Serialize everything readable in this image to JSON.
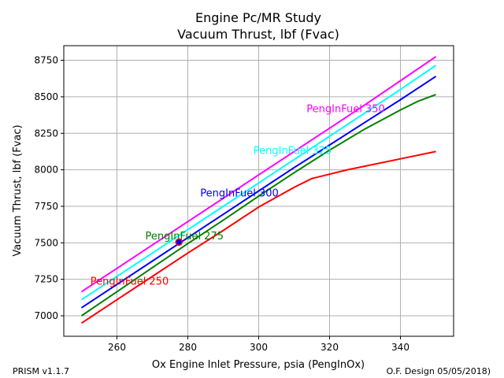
{
  "chart_data": {
    "type": "line",
    "title": "Engine Pc/MR Study",
    "subtitle": "Vacuum Thrust, lbf (Fvac)",
    "xlabel": "Ox Engine Inlet Pressure, psia (PengInOx)",
    "ylabel": "Vacuum Thrust, lbf (Fvac)",
    "xlim": [
      245,
      355
    ],
    "ylim": [
      6860,
      8850
    ],
    "xticks": [
      260,
      280,
      300,
      320,
      340
    ],
    "yticks": [
      7000,
      7250,
      7500,
      7750,
      8000,
      8250,
      8500,
      8750
    ],
    "grid": true,
    "series": [
      {
        "name": "PengInFuel 250",
        "color": "#ff0000",
        "x": [
          250,
          260,
          270,
          280,
          290,
          300,
          310,
          315,
          320,
          325,
          330,
          340,
          350
        ],
        "y": [
          6950,
          7110,
          7270,
          7430,
          7585,
          7745,
          7880,
          7940,
          7970,
          8000,
          8025,
          8075,
          8125
        ]
      },
      {
        "name": "PengInFuel 275",
        "color": "#008000",
        "x": [
          250,
          260,
          270,
          280,
          290,
          300,
          310,
          320,
          330,
          340,
          345,
          350
        ],
        "y": [
          7000,
          7165,
          7330,
          7495,
          7655,
          7820,
          7980,
          8135,
          8280,
          8410,
          8470,
          8515
        ]
      },
      {
        "name": "PengInFuel 300",
        "color": "#0000ff",
        "x": [
          250,
          260,
          270,
          280,
          290,
          300,
          310,
          320,
          330,
          340,
          350
        ],
        "y": [
          7055,
          7215,
          7375,
          7535,
          7695,
          7855,
          8015,
          8170,
          8325,
          8480,
          8640
        ]
      },
      {
        "name": "PengInFuel 325",
        "color": "#00ffff",
        "x": [
          250,
          260,
          270,
          280,
          290,
          300,
          310,
          320,
          330,
          340,
          350
        ],
        "y": [
          7110,
          7270,
          7430,
          7590,
          7750,
          7910,
          8070,
          8230,
          8390,
          8550,
          8715
        ]
      },
      {
        "name": "PengInFuel 350",
        "color": "#ff00ff",
        "x": [
          250,
          260,
          270,
          280,
          290,
          300,
          310,
          320,
          330,
          340,
          350
        ],
        "y": [
          7165,
          7325,
          7485,
          7645,
          7805,
          7965,
          8125,
          8285,
          8445,
          8610,
          8775
        ]
      }
    ],
    "annotations": [
      {
        "text": "PengInFuel 250",
        "color": "#ff0000",
        "x": 252.5,
        "y": 7240
      },
      {
        "text": "PengInFuel 275",
        "color": "#008000",
        "x": 268,
        "y": 7550
      },
      {
        "text": "PengInFuel 300",
        "color": "#0000ff",
        "x": 283.5,
        "y": 7845
      },
      {
        "text": "PengInFuel 325",
        "color": "#00ffff",
        "x": 298.5,
        "y": 8135
      },
      {
        "text": "PengInFuel 350",
        "color": "#ff00ff",
        "x": 313.5,
        "y": 8420
      }
    ],
    "marker": {
      "x": 277.5,
      "y": 7505,
      "face": "#0000ff",
      "edge": "#ff0000"
    }
  },
  "footer": {
    "left": "PRISM v1.1.7",
    "right": "O.F. Design 05/05/2018)"
  }
}
